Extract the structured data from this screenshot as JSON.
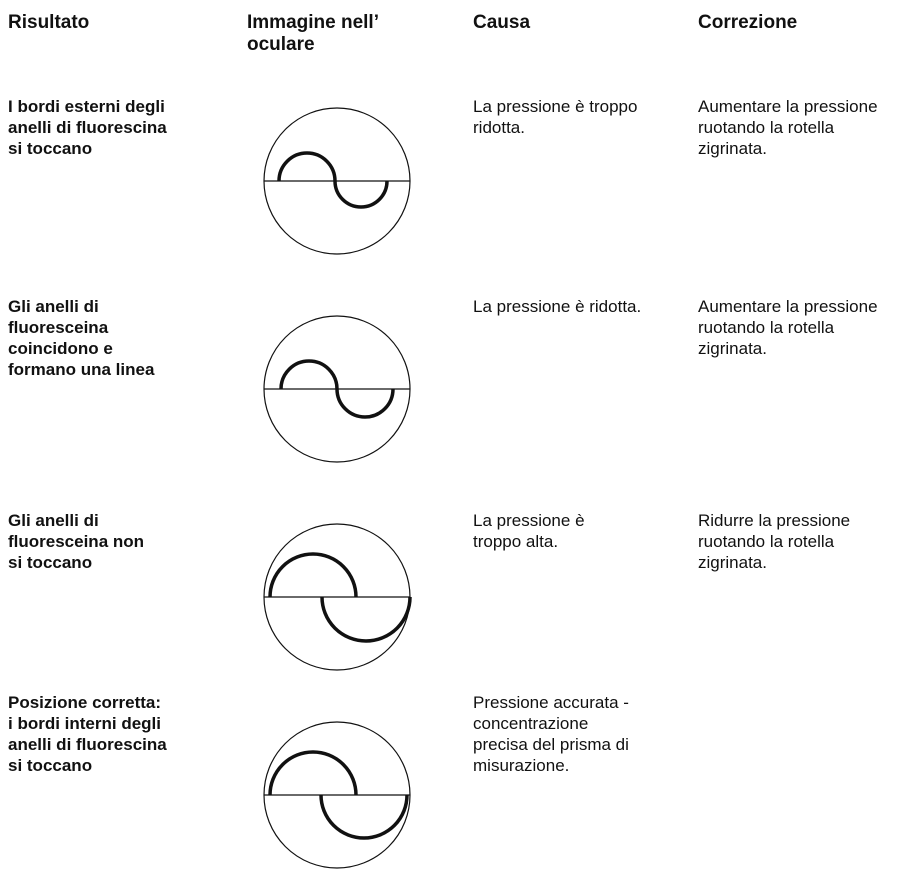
{
  "header": {
    "columns": [
      [
        "Risultato"
      ],
      [
        "Immagine nell’",
        "oculare"
      ],
      [
        "Causa"
      ],
      [
        "Correzione"
      ]
    ]
  },
  "rows": [
    {
      "result": [
        "I bordi esterni degli",
        "anelli di fluorescina",
        "si toccano"
      ],
      "cause": [
        "La pressione è troppo",
        "ridotta."
      ],
      "correction": [
        "Aumentare la pressione",
        "ruotando la rotella",
        "zigrinata."
      ]
    },
    {
      "result": [
        "Gli anelli di",
        "fluoresceina",
        "coincidono e",
        "formano una linea"
      ],
      "cause": [
        "La pressione è ridotta."
      ],
      "correction": [
        "Aumentare la pressione",
        "ruotando la rotella",
        "zigrinata."
      ]
    },
    {
      "result": [
        "Gli anelli di",
        "fluoresceina non",
        "si toccano"
      ],
      "cause": [
        "La pressione è",
        "troppo alta."
      ],
      "correction": [
        "Ridurre la pressione",
        "ruotando la rotella",
        "zigrinata."
      ]
    },
    {
      "result": [
        "Posizione corretta:",
        "i bordi interni degli",
        "anelli di fluorescina",
        "si toccano"
      ],
      "cause": [
        "Pressione accurata -",
        "concentrazione",
        "precisa del prisma di",
        "misurazione."
      ],
      "correction": []
    }
  ]
}
